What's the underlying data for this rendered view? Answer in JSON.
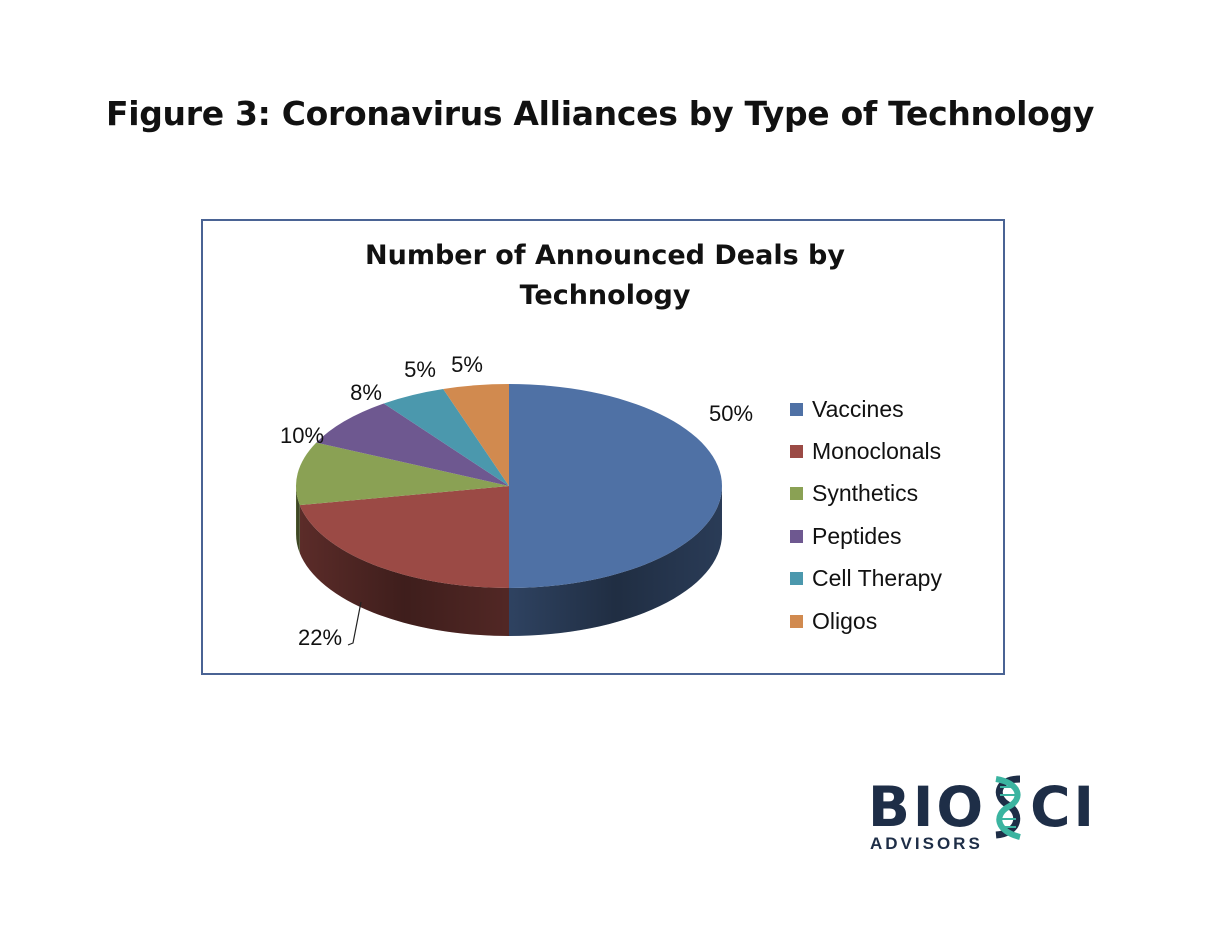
{
  "figure_title": "Figure 3:  Coronavirus Alliances by Type of Technology",
  "chart_data": {
    "type": "pie",
    "title_lines": [
      "Number of Announced Deals by",
      "Technology"
    ],
    "categories": [
      "Vaccines",
      "Monoclonals",
      "Synthetics",
      "Peptides",
      "Cell Therapy",
      "Oligos"
    ],
    "values": [
      50,
      22,
      10,
      8,
      5,
      5
    ],
    "labels": [
      "50%",
      "22%",
      "10%",
      "8%",
      "5%",
      "5%"
    ],
    "colors": [
      "#4f71a5",
      "#9b4a45",
      "#8aa154",
      "#6e5890",
      "#4b98ad",
      "#d18a4f"
    ],
    "legend_position": "right",
    "style": "3d"
  },
  "logo": {
    "text_left": "BIO",
    "text_right": "CI",
    "subtitle": "ADVISORS",
    "colors": {
      "text": "#1e2e47",
      "helix": "#3bb4a0"
    }
  }
}
